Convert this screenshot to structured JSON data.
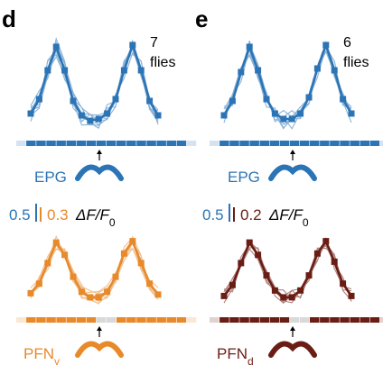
{
  "panels": [
    {
      "letter": "d",
      "count_value": "7",
      "count_unit": "flies",
      "top_label": "EPG",
      "bottom_label_main": "PFN",
      "bottom_label_sub": "v",
      "scale_top": "0.5",
      "scale_bottom": "0.3",
      "scale_quantity": "ΔF/F",
      "scale_quantity_sub": "0",
      "top_color": "#2b74b6",
      "bottom_color": "#e8892a"
    },
    {
      "letter": "e",
      "count_value": "6",
      "count_unit": "flies",
      "top_label": "EPG",
      "bottom_label_main": "PFN",
      "bottom_label_sub": "d",
      "scale_top": "0.5",
      "scale_bottom": "0.2",
      "scale_quantity": "ΔF/F",
      "scale_quantity_sub": "0",
      "top_color": "#2b74b6",
      "bottom_color": "#6b1d14"
    }
  ],
  "chart_data": [
    {
      "type": "line",
      "panel": "d",
      "series": [
        {
          "name": "EPG",
          "x": [
            1,
            2,
            3,
            4,
            5,
            6,
            7,
            8,
            9,
            10,
            11,
            12,
            13,
            14,
            15,
            16
          ],
          "y": [
            0.14,
            0.3,
            0.62,
            0.88,
            0.62,
            0.28,
            0.12,
            0.06,
            0.08,
            0.14,
            0.3,
            0.62,
            0.9,
            0.62,
            0.28,
            0.12
          ],
          "individual_traces": 7
        },
        {
          "name": "PFN",
          "x": [
            1,
            2,
            3,
            4,
            5,
            6,
            7,
            8,
            9,
            10,
            11,
            12,
            13,
            14,
            15,
            16
          ],
          "y": [
            0.14,
            0.28,
            0.58,
            0.88,
            0.7,
            0.38,
            0.16,
            0.08,
            0.08,
            0.16,
            0.38,
            0.72,
            0.9,
            0.58,
            0.28,
            0.12
          ],
          "individual_traces": 7
        }
      ]
    },
    {
      "type": "line",
      "panel": "e",
      "series": [
        {
          "name": "EPG",
          "x": [
            1,
            2,
            3,
            4,
            5,
            6,
            7,
            8,
            9,
            10,
            11,
            12,
            13,
            14,
            15,
            16
          ],
          "y": [
            0.12,
            0.28,
            0.6,
            0.88,
            0.62,
            0.3,
            0.14,
            0.08,
            0.08,
            0.14,
            0.32,
            0.64,
            0.9,
            0.62,
            0.3,
            0.14
          ],
          "individual_traces": 6
        },
        {
          "name": "PFN",
          "x": [
            1,
            2,
            3,
            4,
            5,
            6,
            7,
            8,
            9,
            10,
            11,
            12,
            13,
            14,
            15,
            16
          ],
          "y": [
            0.1,
            0.26,
            0.58,
            0.88,
            0.7,
            0.4,
            0.18,
            0.08,
            0.08,
            0.18,
            0.4,
            0.72,
            0.9,
            0.6,
            0.28,
            0.1
          ],
          "individual_traces": 6
        }
      ]
    }
  ]
}
